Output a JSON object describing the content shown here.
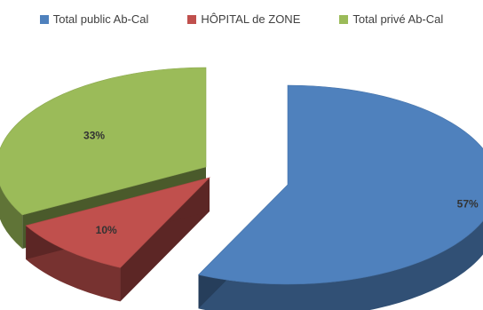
{
  "chart_data": {
    "type": "pie",
    "style": "3d-exploded",
    "legend_position": "top",
    "slices": [
      {
        "name": "Total public Ab-Cal",
        "value": 57,
        "label": "57%",
        "color": "#4f81bd"
      },
      {
        "name": "HÔPITAL de ZONE",
        "value": 10,
        "label": "10%",
        "color": "#c0504d"
      },
      {
        "name": "Total privé Ab-Cal",
        "value": 33,
        "label": "33%",
        "color": "#9bbb59"
      }
    ]
  }
}
